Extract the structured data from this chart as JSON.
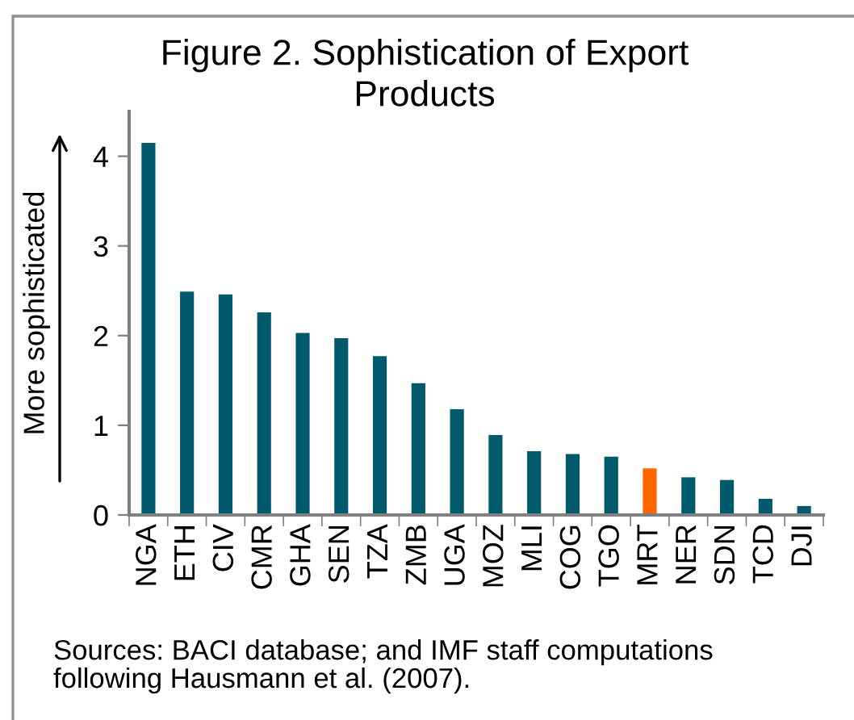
{
  "chart_data": {
    "type": "bar",
    "title": "Figure 2. Sophistication of Export Products",
    "ylabel": "More sophisticated",
    "categories": [
      "NGA",
      "ETH",
      "CIV",
      "CMR",
      "GHA",
      "SEN",
      "TZA",
      "ZMB",
      "UGA",
      "MOZ",
      "MLI",
      "COG",
      "TGO",
      "MRT",
      "NER",
      "SDN",
      "TCD",
      "DJI"
    ],
    "values": [
      4.15,
      2.49,
      2.46,
      2.26,
      2.03,
      1.97,
      1.77,
      1.47,
      1.18,
      0.89,
      0.71,
      0.68,
      0.65,
      0.52,
      0.42,
      0.39,
      0.18,
      0.1
    ],
    "colors": [
      "#005a6b",
      "#005a6b",
      "#005a6b",
      "#005a6b",
      "#005a6b",
      "#005a6b",
      "#005a6b",
      "#005a6b",
      "#005a6b",
      "#005a6b",
      "#005a6b",
      "#005a6b",
      "#005a6b",
      "#ff6600",
      "#005a6b",
      "#005a6b",
      "#005a6b",
      "#005a6b"
    ],
    "ylim": [
      0,
      4.5
    ],
    "yticks": [
      0,
      1,
      2,
      3,
      4
    ],
    "grid": false,
    "legend": false,
    "annotations": [
      "Sources: BACI database; and IMF staff computations following Hausmann et al. (2007)."
    ]
  }
}
